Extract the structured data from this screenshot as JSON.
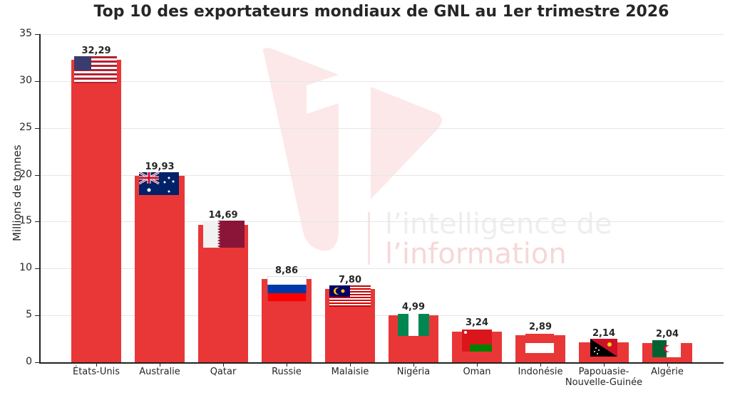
{
  "title": "Top 10 des exportateurs mondiaux de GNL au 1er trimestre 2026",
  "watermark": {
    "line1": "l’intelligence de",
    "line2": "l’information"
  },
  "colors": {
    "bar": "#e93737",
    "grid": "#e6e6e6",
    "watermark": "#f6d7d7"
  },
  "chart_data": {
    "type": "bar",
    "title": "Top 10 des exportateurs mondiaux de GNL au 1er trimestre 2026",
    "xlabel": "",
    "ylabel": "Millions de tonnes",
    "ylim": [
      0,
      35
    ],
    "yticks": [
      "0",
      "5",
      "10",
      "15",
      "20",
      "25",
      "30",
      "35"
    ],
    "grid": "horizontal",
    "categories": [
      "États-Unis",
      "Australie",
      "Qatar",
      "Russie",
      "Malaisie",
      "Nigéria",
      "Oman",
      "Indonésie",
      "Papouasie-Nouvelle-Guinée",
      "Algérie"
    ],
    "values": [
      32.29,
      19.93,
      14.69,
      8.86,
      7.8,
      4.99,
      3.24,
      2.89,
      2.14,
      2.04
    ],
    "value_labels": [
      "32,29",
      "19,93",
      "14,69",
      "8,86",
      "7,80",
      "4,99",
      "3,24",
      "2,89",
      "2,14",
      "2,04"
    ],
    "bar_annotations": [
      "flag-usa",
      "flag-australia",
      "flag-qatar",
      "flag-russia",
      "flag-malaysia",
      "flag-nigeria",
      "flag-oman",
      "flag-indonesia",
      "flag-papua-new-guinea",
      "flag-algeria"
    ]
  }
}
